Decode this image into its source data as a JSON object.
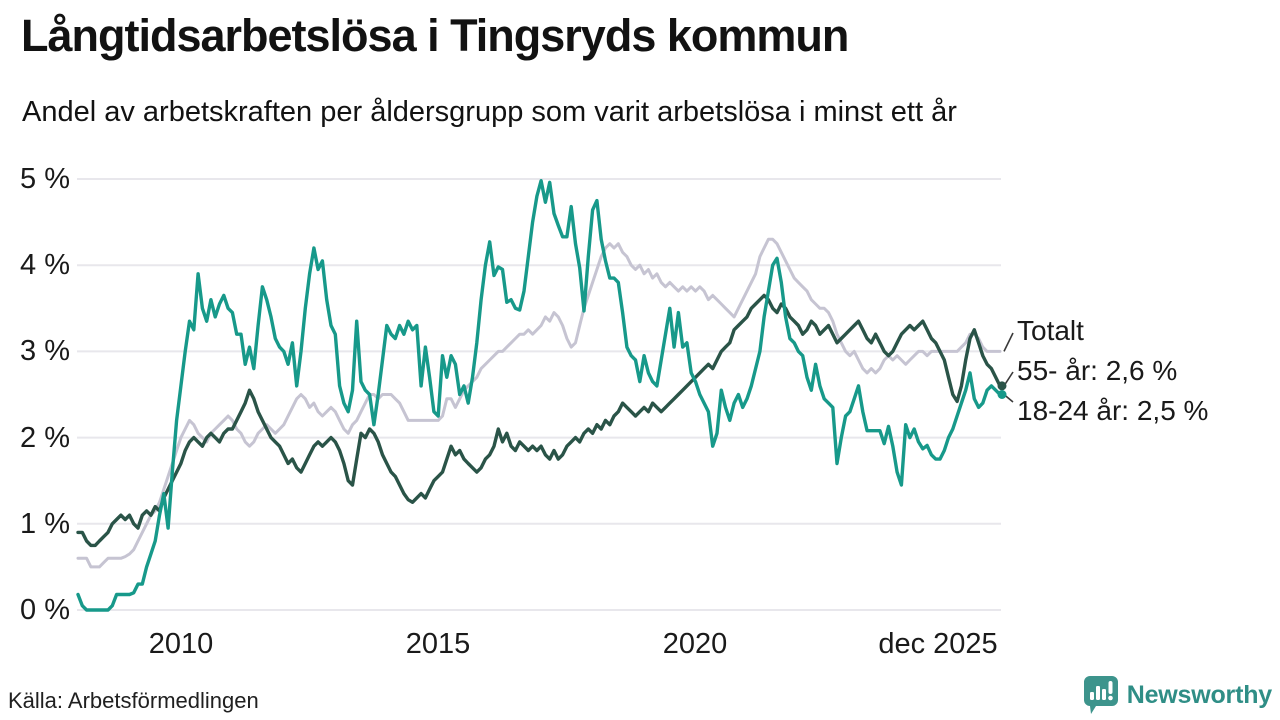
{
  "header": {
    "title": "Långtidsarbetslösa i Tingsryds kommun",
    "subtitle": "Andel av arbetskraften per åldersgrupp som varit arbetslösa i minst ett år"
  },
  "footer": {
    "source": "Källa: Arbetsförmedlingen",
    "brand": "Newsworthy"
  },
  "colors": {
    "totalt": "#c6c4d2",
    "age_55_plus": "#2a5448",
    "age_18_24": "#17998a",
    "gridline": "#e8e7ec",
    "leader_line": "#3a3a3a",
    "brand_teal": "#3d948c"
  },
  "chart_data": {
    "type": "line",
    "title": "Långtidsarbetslösa i Tingsryds kommun",
    "subtitle": "Andel av arbetskraften per åldersgrupp som varit arbetslösa i minst ett år",
    "x_start": "jan 2008",
    "x_end": "dec 2025",
    "x_interval": "monthly",
    "x_tick_labels": [
      "2010",
      "2015",
      "2020",
      "dec 2025"
    ],
    "y_tick_labels": [
      "5 %",
      "4 %",
      "3 %",
      "2 %",
      "1 %",
      "0 %"
    ],
    "ylim": [
      0,
      5
    ],
    "grid": true,
    "legend_position": "right-end-labels",
    "series": [
      {
        "name": "Totalt",
        "label": "Totalt",
        "color": "#c6c4d2",
        "end_dot": false,
        "values": [
          0.6,
          0.6,
          0.6,
          0.5,
          0.5,
          0.5,
          0.55,
          0.6,
          0.6,
          0.6,
          0.6,
          0.62,
          0.65,
          0.7,
          0.8,
          0.9,
          1.0,
          1.1,
          1.15,
          1.25,
          1.4,
          1.55,
          1.7,
          1.85,
          2.0,
          2.1,
          2.2,
          2.15,
          2.05,
          2.0,
          1.95,
          2.05,
          2.1,
          2.15,
          2.2,
          2.25,
          2.2,
          2.1,
          2.05,
          1.95,
          1.9,
          1.95,
          2.05,
          2.1,
          2.15,
          2.1,
          2.05,
          2.1,
          2.15,
          2.25,
          2.35,
          2.45,
          2.5,
          2.45,
          2.35,
          2.4,
          2.3,
          2.25,
          2.3,
          2.35,
          2.3,
          2.2,
          2.1,
          2.05,
          2.15,
          2.2,
          2.3,
          2.4,
          2.5,
          2.5,
          2.45,
          2.5,
          2.5,
          2.5,
          2.45,
          2.4,
          2.3,
          2.2,
          2.2,
          2.2,
          2.2,
          2.2,
          2.2,
          2.2,
          2.2,
          2.25,
          2.45,
          2.45,
          2.35,
          2.45,
          2.55,
          2.6,
          2.65,
          2.7,
          2.8,
          2.85,
          2.9,
          2.95,
          3.0,
          3.0,
          3.05,
          3.1,
          3.15,
          3.2,
          3.2,
          3.25,
          3.2,
          3.25,
          3.3,
          3.4,
          3.35,
          3.45,
          3.4,
          3.3,
          3.15,
          3.05,
          3.1,
          3.3,
          3.5,
          3.65,
          3.8,
          3.95,
          4.1,
          4.2,
          4.25,
          4.2,
          4.25,
          4.15,
          4.1,
          4.0,
          3.95,
          4.0,
          3.9,
          3.95,
          3.85,
          3.9,
          3.8,
          3.75,
          3.8,
          3.75,
          3.7,
          3.75,
          3.7,
          3.75,
          3.7,
          3.75,
          3.7,
          3.6,
          3.65,
          3.6,
          3.55,
          3.5,
          3.45,
          3.4,
          3.5,
          3.6,
          3.7,
          3.8,
          3.9,
          4.1,
          4.2,
          4.3,
          4.3,
          4.25,
          4.15,
          4.05,
          3.95,
          3.85,
          3.8,
          3.75,
          3.7,
          3.6,
          3.55,
          3.5,
          3.5,
          3.45,
          3.35,
          3.2,
          3.1,
          3.0,
          2.95,
          3.0,
          2.9,
          2.8,
          2.75,
          2.8,
          2.75,
          2.8,
          2.9,
          2.95,
          2.9,
          2.95,
          2.9,
          2.85,
          2.9,
          2.95,
          3.0,
          3.0,
          2.95,
          3.0,
          3.0,
          3.0,
          3.0,
          3.0,
          3.0,
          3.0,
          3.05,
          3.1,
          3.2,
          3.2,
          3.15,
          3.05,
          3.0,
          3.0,
          3.0,
          3.0
        ]
      },
      {
        "name": "55- år",
        "label": "55- år: 2,6 %",
        "color": "#2a5448",
        "end_dot": true,
        "values": [
          0.9,
          0.9,
          0.8,
          0.75,
          0.75,
          0.8,
          0.85,
          0.9,
          1.0,
          1.05,
          1.1,
          1.05,
          1.1,
          1.0,
          0.95,
          1.1,
          1.15,
          1.1,
          1.2,
          1.15,
          1.3,
          1.4,
          1.5,
          1.6,
          1.7,
          1.85,
          1.95,
          2.0,
          1.95,
          1.9,
          2.0,
          2.05,
          2.0,
          1.95,
          2.05,
          2.1,
          2.1,
          2.2,
          2.3,
          2.4,
          2.55,
          2.45,
          2.3,
          2.2,
          2.1,
          2.0,
          1.95,
          1.9,
          1.8,
          1.7,
          1.75,
          1.65,
          1.6,
          1.7,
          1.8,
          1.9,
          1.95,
          1.9,
          1.95,
          2.0,
          1.95,
          1.85,
          1.7,
          1.5,
          1.45,
          1.75,
          2.05,
          2.0,
          2.1,
          2.05,
          1.95,
          1.8,
          1.7,
          1.6,
          1.55,
          1.45,
          1.35,
          1.28,
          1.25,
          1.3,
          1.35,
          1.3,
          1.4,
          1.5,
          1.55,
          1.6,
          1.75,
          1.9,
          1.8,
          1.85,
          1.75,
          1.7,
          1.65,
          1.6,
          1.65,
          1.75,
          1.8,
          1.9,
          2.1,
          1.95,
          2.05,
          1.9,
          1.85,
          1.95,
          1.9,
          1.85,
          1.9,
          1.85,
          1.9,
          1.8,
          1.75,
          1.85,
          1.75,
          1.8,
          1.9,
          1.95,
          2.0,
          1.95,
          2.05,
          2.1,
          2.05,
          2.15,
          2.1,
          2.2,
          2.15,
          2.25,
          2.3,
          2.4,
          2.35,
          2.3,
          2.25,
          2.3,
          2.35,
          2.3,
          2.4,
          2.35,
          2.3,
          2.35,
          2.4,
          2.45,
          2.5,
          2.55,
          2.6,
          2.65,
          2.7,
          2.75,
          2.8,
          2.85,
          2.8,
          2.9,
          3.0,
          3.05,
          3.1,
          3.25,
          3.3,
          3.35,
          3.4,
          3.5,
          3.55,
          3.6,
          3.65,
          3.6,
          3.5,
          3.45,
          3.55,
          3.5,
          3.4,
          3.35,
          3.3,
          3.2,
          3.25,
          3.35,
          3.3,
          3.2,
          3.25,
          3.3,
          3.2,
          3.1,
          3.15,
          3.2,
          3.25,
          3.3,
          3.35,
          3.25,
          3.15,
          3.1,
          3.2,
          3.1,
          3.0,
          2.95,
          3.0,
          3.1,
          3.2,
          3.25,
          3.3,
          3.25,
          3.3,
          3.35,
          3.25,
          3.15,
          3.1,
          3.0,
          2.9,
          2.7,
          2.5,
          2.42,
          2.6,
          2.9,
          3.15,
          3.25,
          3.1,
          2.95,
          2.85,
          2.8,
          2.7,
          2.6
        ]
      },
      {
        "name": "18-24 år",
        "label": "18-24 år: 2,5 %",
        "color": "#17998a",
        "end_dot": true,
        "values": [
          0.18,
          0.05,
          0.0,
          0.0,
          0.0,
          0.0,
          0.0,
          0.0,
          0.05,
          0.18,
          0.18,
          0.18,
          0.18,
          0.2,
          0.3,
          0.3,
          0.5,
          0.65,
          0.8,
          1.1,
          1.35,
          0.95,
          1.6,
          2.2,
          2.6,
          3.0,
          3.35,
          3.25,
          3.9,
          3.5,
          3.35,
          3.6,
          3.4,
          3.55,
          3.65,
          3.5,
          3.45,
          3.2,
          3.2,
          2.85,
          3.05,
          2.8,
          3.3,
          3.75,
          3.6,
          3.4,
          3.15,
          3.05,
          3.0,
          2.85,
          3.1,
          2.6,
          3.0,
          3.5,
          3.9,
          4.2,
          3.95,
          4.05,
          3.6,
          3.3,
          3.2,
          2.6,
          2.4,
          2.3,
          2.55,
          3.35,
          2.65,
          2.55,
          2.5,
          2.15,
          2.5,
          2.9,
          3.3,
          3.2,
          3.15,
          3.3,
          3.2,
          3.35,
          3.25,
          3.3,
          2.6,
          3.05,
          2.7,
          2.3,
          2.25,
          2.95,
          2.7,
          2.95,
          2.85,
          2.5,
          2.6,
          2.4,
          2.7,
          3.1,
          3.6,
          4.0,
          4.27,
          3.88,
          3.98,
          3.95,
          3.57,
          3.6,
          3.5,
          3.48,
          3.7,
          4.1,
          4.5,
          4.8,
          4.98,
          4.73,
          4.96,
          4.6,
          4.46,
          4.33,
          4.33,
          4.68,
          4.25,
          3.97,
          3.47,
          4.1,
          4.64,
          4.75,
          4.3,
          4.05,
          3.85,
          3.85,
          3.8,
          3.45,
          3.05,
          2.95,
          2.9,
          2.65,
          2.95,
          2.75,
          2.65,
          2.6,
          2.9,
          3.2,
          3.5,
          3.05,
          3.45,
          3.05,
          3.1,
          2.75,
          2.65,
          2.5,
          2.4,
          2.3,
          1.9,
          2.05,
          2.55,
          2.35,
          2.2,
          2.4,
          2.5,
          2.35,
          2.45,
          2.6,
          2.8,
          3.0,
          3.4,
          3.7,
          4.0,
          4.08,
          3.8,
          3.4,
          3.15,
          3.1,
          3.0,
          2.95,
          2.7,
          2.55,
          2.85,
          2.6,
          2.45,
          2.4,
          2.35,
          1.7,
          2.0,
          2.25,
          2.3,
          2.45,
          2.6,
          2.3,
          2.08,
          2.08,
          2.08,
          2.08,
          1.93,
          2.13,
          1.9,
          1.6,
          1.45,
          2.15,
          2.0,
          2.1,
          1.95,
          1.87,
          1.91,
          1.8,
          1.75,
          1.75,
          1.85,
          2.0,
          2.1,
          2.25,
          2.4,
          2.55,
          2.75,
          2.45,
          2.35,
          2.4,
          2.55,
          2.6,
          2.55,
          2.5
        ]
      }
    ]
  }
}
